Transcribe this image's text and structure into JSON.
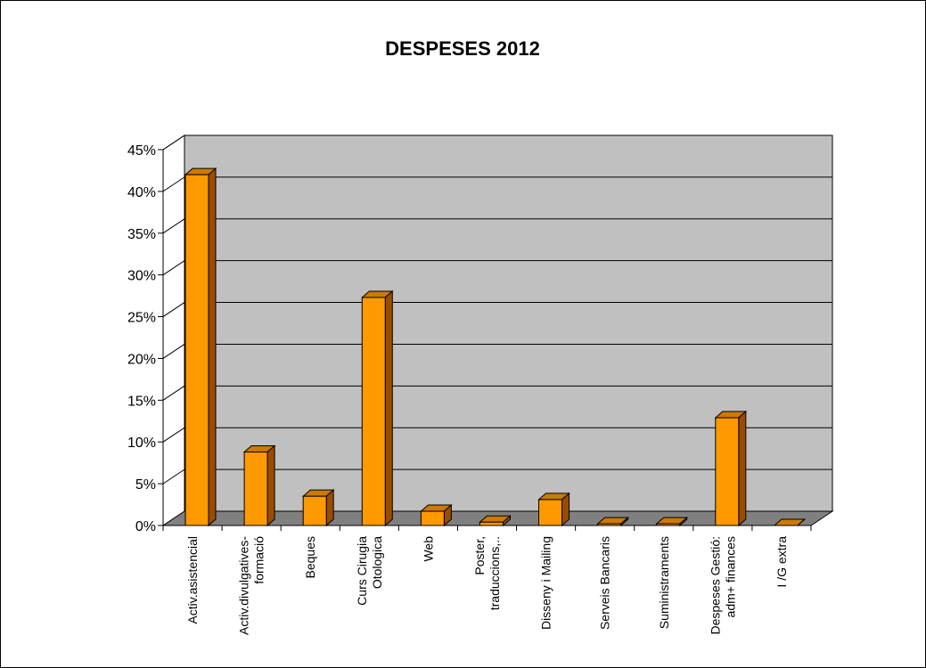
{
  "chart_data": {
    "type": "bar",
    "title": "DESPESES 2012",
    "categories": [
      [
        "Activ.asistencial"
      ],
      [
        "Activ.divulgatives-",
        "formació"
      ],
      [
        "Beques"
      ],
      [
        "Curs Cirugia",
        "Otologica"
      ],
      [
        "Web"
      ],
      [
        "Poster,",
        "traduccions,.."
      ],
      [
        "Disseny i Mailing"
      ],
      [
        "Serveis Bancaris"
      ],
      [
        "Suministraments"
      ],
      [
        "Despeses Gestió:",
        "adm+ finances"
      ],
      [
        "I /G extra"
      ]
    ],
    "values": [
      0.42,
      0.088,
      0.035,
      0.273,
      0.017,
      0.004,
      0.031,
      0.002,
      0.002,
      0.129,
      0.0
    ],
    "yticks": [
      "0%",
      "5%",
      "10%",
      "15%",
      "20%",
      "25%",
      "30%",
      "35%",
      "40%",
      "45%"
    ],
    "ylim": [
      0,
      0.45
    ],
    "grid": true,
    "three_d": true,
    "colors": {
      "bar_front": "#FF9900",
      "bar_side": "#994D00",
      "bar_top": "#CC7A00",
      "wall": "#C0C0C0",
      "floor": "#808080",
      "grid": "#000000"
    }
  }
}
